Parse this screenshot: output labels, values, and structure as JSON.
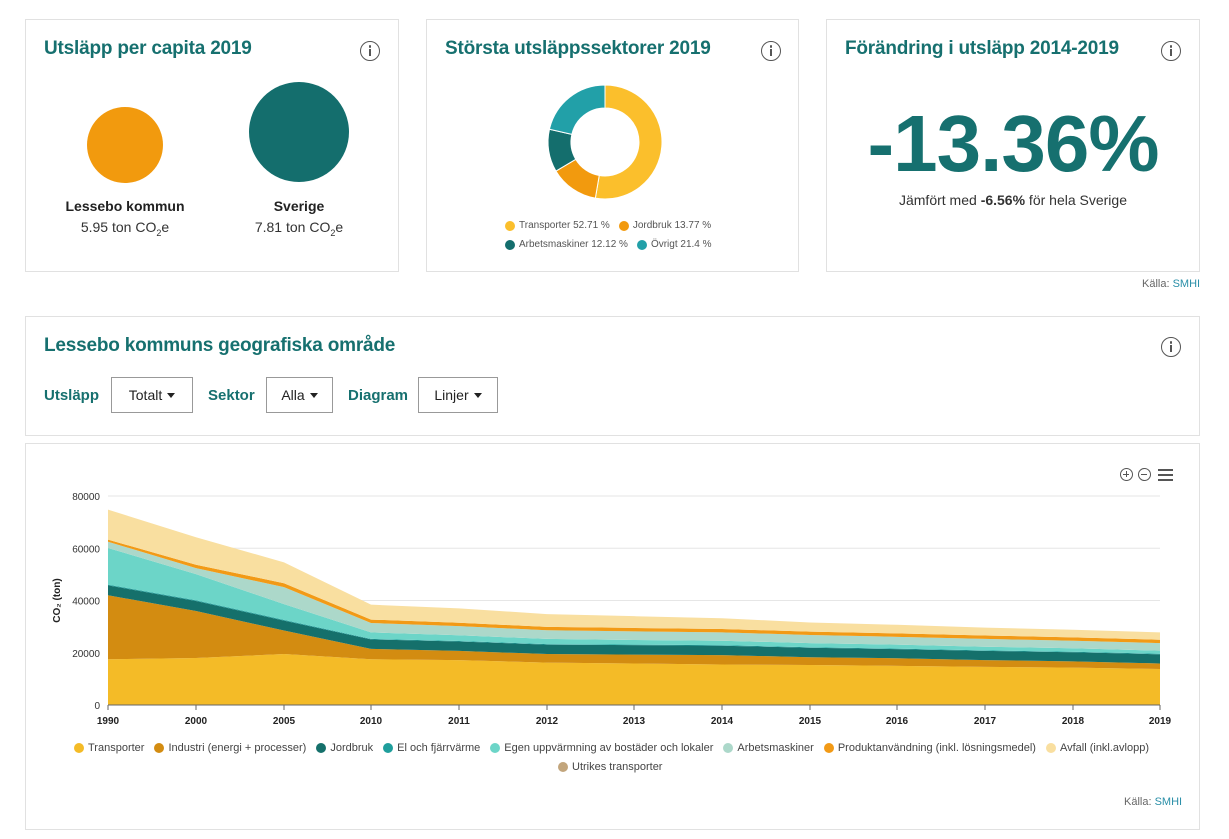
{
  "per_capita": {
    "title": "Utsläpp per capita 2019",
    "items": [
      {
        "name": "Lessebo kommun",
        "value": "5.95",
        "unit_prefix": "ton CO",
        "unit_sub": "2",
        "unit_suffix": "e",
        "color": "#f29a0e"
      },
      {
        "name": "Sverige",
        "value": "7.81",
        "unit_prefix": "ton CO",
        "unit_sub": "2",
        "unit_suffix": "e",
        "color": "#146e6d"
      }
    ]
  },
  "sectors": {
    "title": "Största utsläppssektorer 2019",
    "slices": [
      {
        "label": "Transporter",
        "pct": 52.71,
        "pct_label": "52.71 %",
        "color": "#fbbf2c"
      },
      {
        "label": "Jordbruk",
        "pct": 13.77,
        "pct_label": "13.77 %",
        "color": "#f29a0e"
      },
      {
        "label": "Arbetsmaskiner",
        "pct": 12.12,
        "pct_label": "12.12 %",
        "color": "#146e6d"
      },
      {
        "label": "Övrigt",
        "pct": 21.4,
        "pct_label": "21.4 %",
        "color": "#22a0a8"
      }
    ]
  },
  "change": {
    "title": "Förändring i utsläpp 2014-2019",
    "value": "-13.36%",
    "compare_prefix": "Jämfört med ",
    "compare_value": "-6.56%",
    "compare_suffix": " för hela Sverige"
  },
  "source_top": {
    "label": "Källa: ",
    "link": "SMHI"
  },
  "geo": {
    "title": "Lessebo kommuns geografiska område",
    "filters": [
      {
        "label": "Utsläpp",
        "value": "Totalt"
      },
      {
        "label": "Sektor",
        "value": "Alla"
      },
      {
        "label": "Diagram",
        "value": "Linjer"
      }
    ]
  },
  "source_bottom": {
    "label": "Källa: ",
    "link": "SMHI"
  },
  "chart_data": {
    "type": "area",
    "stacked": true,
    "ylabel": "CO₂ (ton)",
    "ylim": [
      0,
      80000
    ],
    "yticks": [
      0,
      20000,
      40000,
      60000,
      80000
    ],
    "x": [
      1990,
      2000,
      2005,
      2010,
      2011,
      2012,
      2013,
      2014,
      2015,
      2016,
      2017,
      2018,
      2019
    ],
    "grid": true,
    "legend_position": "bottom",
    "series": [
      {
        "name": "Transporter",
        "color": "#f4bb27",
        "values": [
          17500,
          18000,
          19500,
          17500,
          17200,
          16200,
          15900,
          15500,
          15300,
          15000,
          14600,
          14300,
          13800
        ]
      },
      {
        "name": "Industri (energi + processer)",
        "color": "#d38c11",
        "values": [
          24500,
          18000,
          9000,
          4000,
          3500,
          3300,
          3400,
          3600,
          3000,
          2900,
          2600,
          2400,
          2100
        ]
      },
      {
        "name": "Jordbruk",
        "color": "#15706b",
        "values": [
          3800,
          3800,
          3800,
          3600,
          3600,
          3600,
          3600,
          3600,
          3600,
          3500,
          3500,
          3500,
          3500
        ]
      },
      {
        "name": "El och fjärrvärme",
        "color": "#1f9e9c",
        "values": [
          300,
          300,
          300,
          200,
          200,
          200,
          200,
          200,
          200,
          200,
          200,
          200,
          200
        ]
      },
      {
        "name": "Egen uppvärmning av bostäder och lokaler",
        "color": "#6cd5c8",
        "values": [
          14000,
          10000,
          6000,
          2500,
          2200,
          2000,
          1800,
          1700,
          1600,
          1500,
          1400,
          1300,
          1200
        ]
      },
      {
        "name": "Arbetsmaskiner",
        "color": "#acd8ca",
        "values": [
          2400,
          2300,
          6500,
          3600,
          3500,
          3300,
          3300,
          3200,
          3100,
          3000,
          3000,
          2900,
          2900
        ]
      },
      {
        "name": "Produktanvändning (inkl. lösningsmedel)",
        "color": "#f29a16",
        "values": [
          800,
          1300,
          1500,
          1300,
          1300,
          1300,
          1300,
          1300,
          1300,
          1300,
          1300,
          1300,
          1300
        ]
      },
      {
        "name": "Avfall (inkl.avlopp)",
        "color": "#f9dfa0",
        "values": [
          11500,
          10500,
          8000,
          5700,
          5500,
          4900,
          4500,
          4100,
          3500,
          3300,
          3000,
          2900,
          2800
        ]
      },
      {
        "name": "Utrikes transporter",
        "color": "#c2a57c",
        "values": [
          0,
          0,
          0,
          0,
          0,
          0,
          0,
          0,
          0,
          0,
          0,
          0,
          0
        ]
      }
    ]
  }
}
